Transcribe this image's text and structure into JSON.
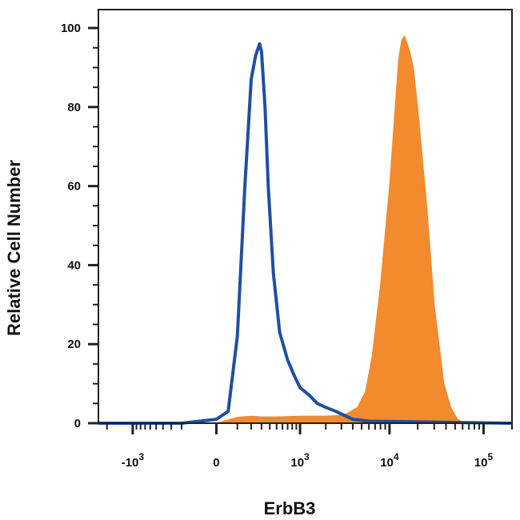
{
  "chart_data": {
    "type": "area",
    "title": "",
    "xlabel": "ErbB3",
    "ylabel": "Relative Cell Number",
    "x_scale": "biexponential (log with linear region near 0)",
    "xlim": [
      -2500,
      200000
    ],
    "ylim": [
      0,
      100
    ],
    "y_ticks": [
      0,
      20,
      40,
      60,
      80,
      100
    ],
    "x_tick_labels": [
      {
        "value": -1000,
        "base": "-10",
        "exp": "3"
      },
      {
        "value": 0,
        "base": "0",
        "exp": ""
      },
      {
        "value": 1000,
        "base": "10",
        "exp": "3"
      },
      {
        "value": 10000,
        "base": "10",
        "exp": "4"
      },
      {
        "value": 100000,
        "base": "10",
        "exp": "5"
      }
    ],
    "grid": false,
    "series": [
      {
        "style": "filled",
        "color": "#f28a2e",
        "x": [
          -2500,
          0,
          100,
          200,
          300,
          500,
          1000,
          2000,
          3000,
          3500,
          4500,
          5500,
          6500,
          8000,
          10000,
          11500,
          12500,
          13500,
          14500,
          15500,
          16500,
          18000,
          20000,
          25000,
          30000,
          38000,
          45000,
          53000,
          62000,
          200000
        ],
        "y": [
          0,
          0,
          1.5,
          1.8,
          1.6,
          1.6,
          1.8,
          1.8,
          2,
          2.5,
          4,
          8,
          17,
          35,
          60,
          80,
          92,
          97,
          98,
          96,
          94,
          90,
          80,
          55,
          30,
          10,
          4,
          1,
          0,
          0
        ]
      },
      {
        "style": "line",
        "color": "#1f4fa0",
        "x": [
          -2500,
          -200,
          0,
          50,
          100,
          150,
          200,
          240,
          280,
          300,
          340,
          380,
          450,
          550,
          700,
          850,
          1000,
          1300,
          1600,
          2000,
          2600,
          3200,
          4000,
          6000,
          200000
        ],
        "y": [
          0,
          0,
          1,
          3,
          22,
          60,
          87,
          93,
          96,
          94,
          80,
          60,
          38,
          23,
          16,
          12,
          9,
          7,
          5,
          4,
          3,
          2,
          1,
          0.5,
          0
        ]
      }
    ]
  }
}
